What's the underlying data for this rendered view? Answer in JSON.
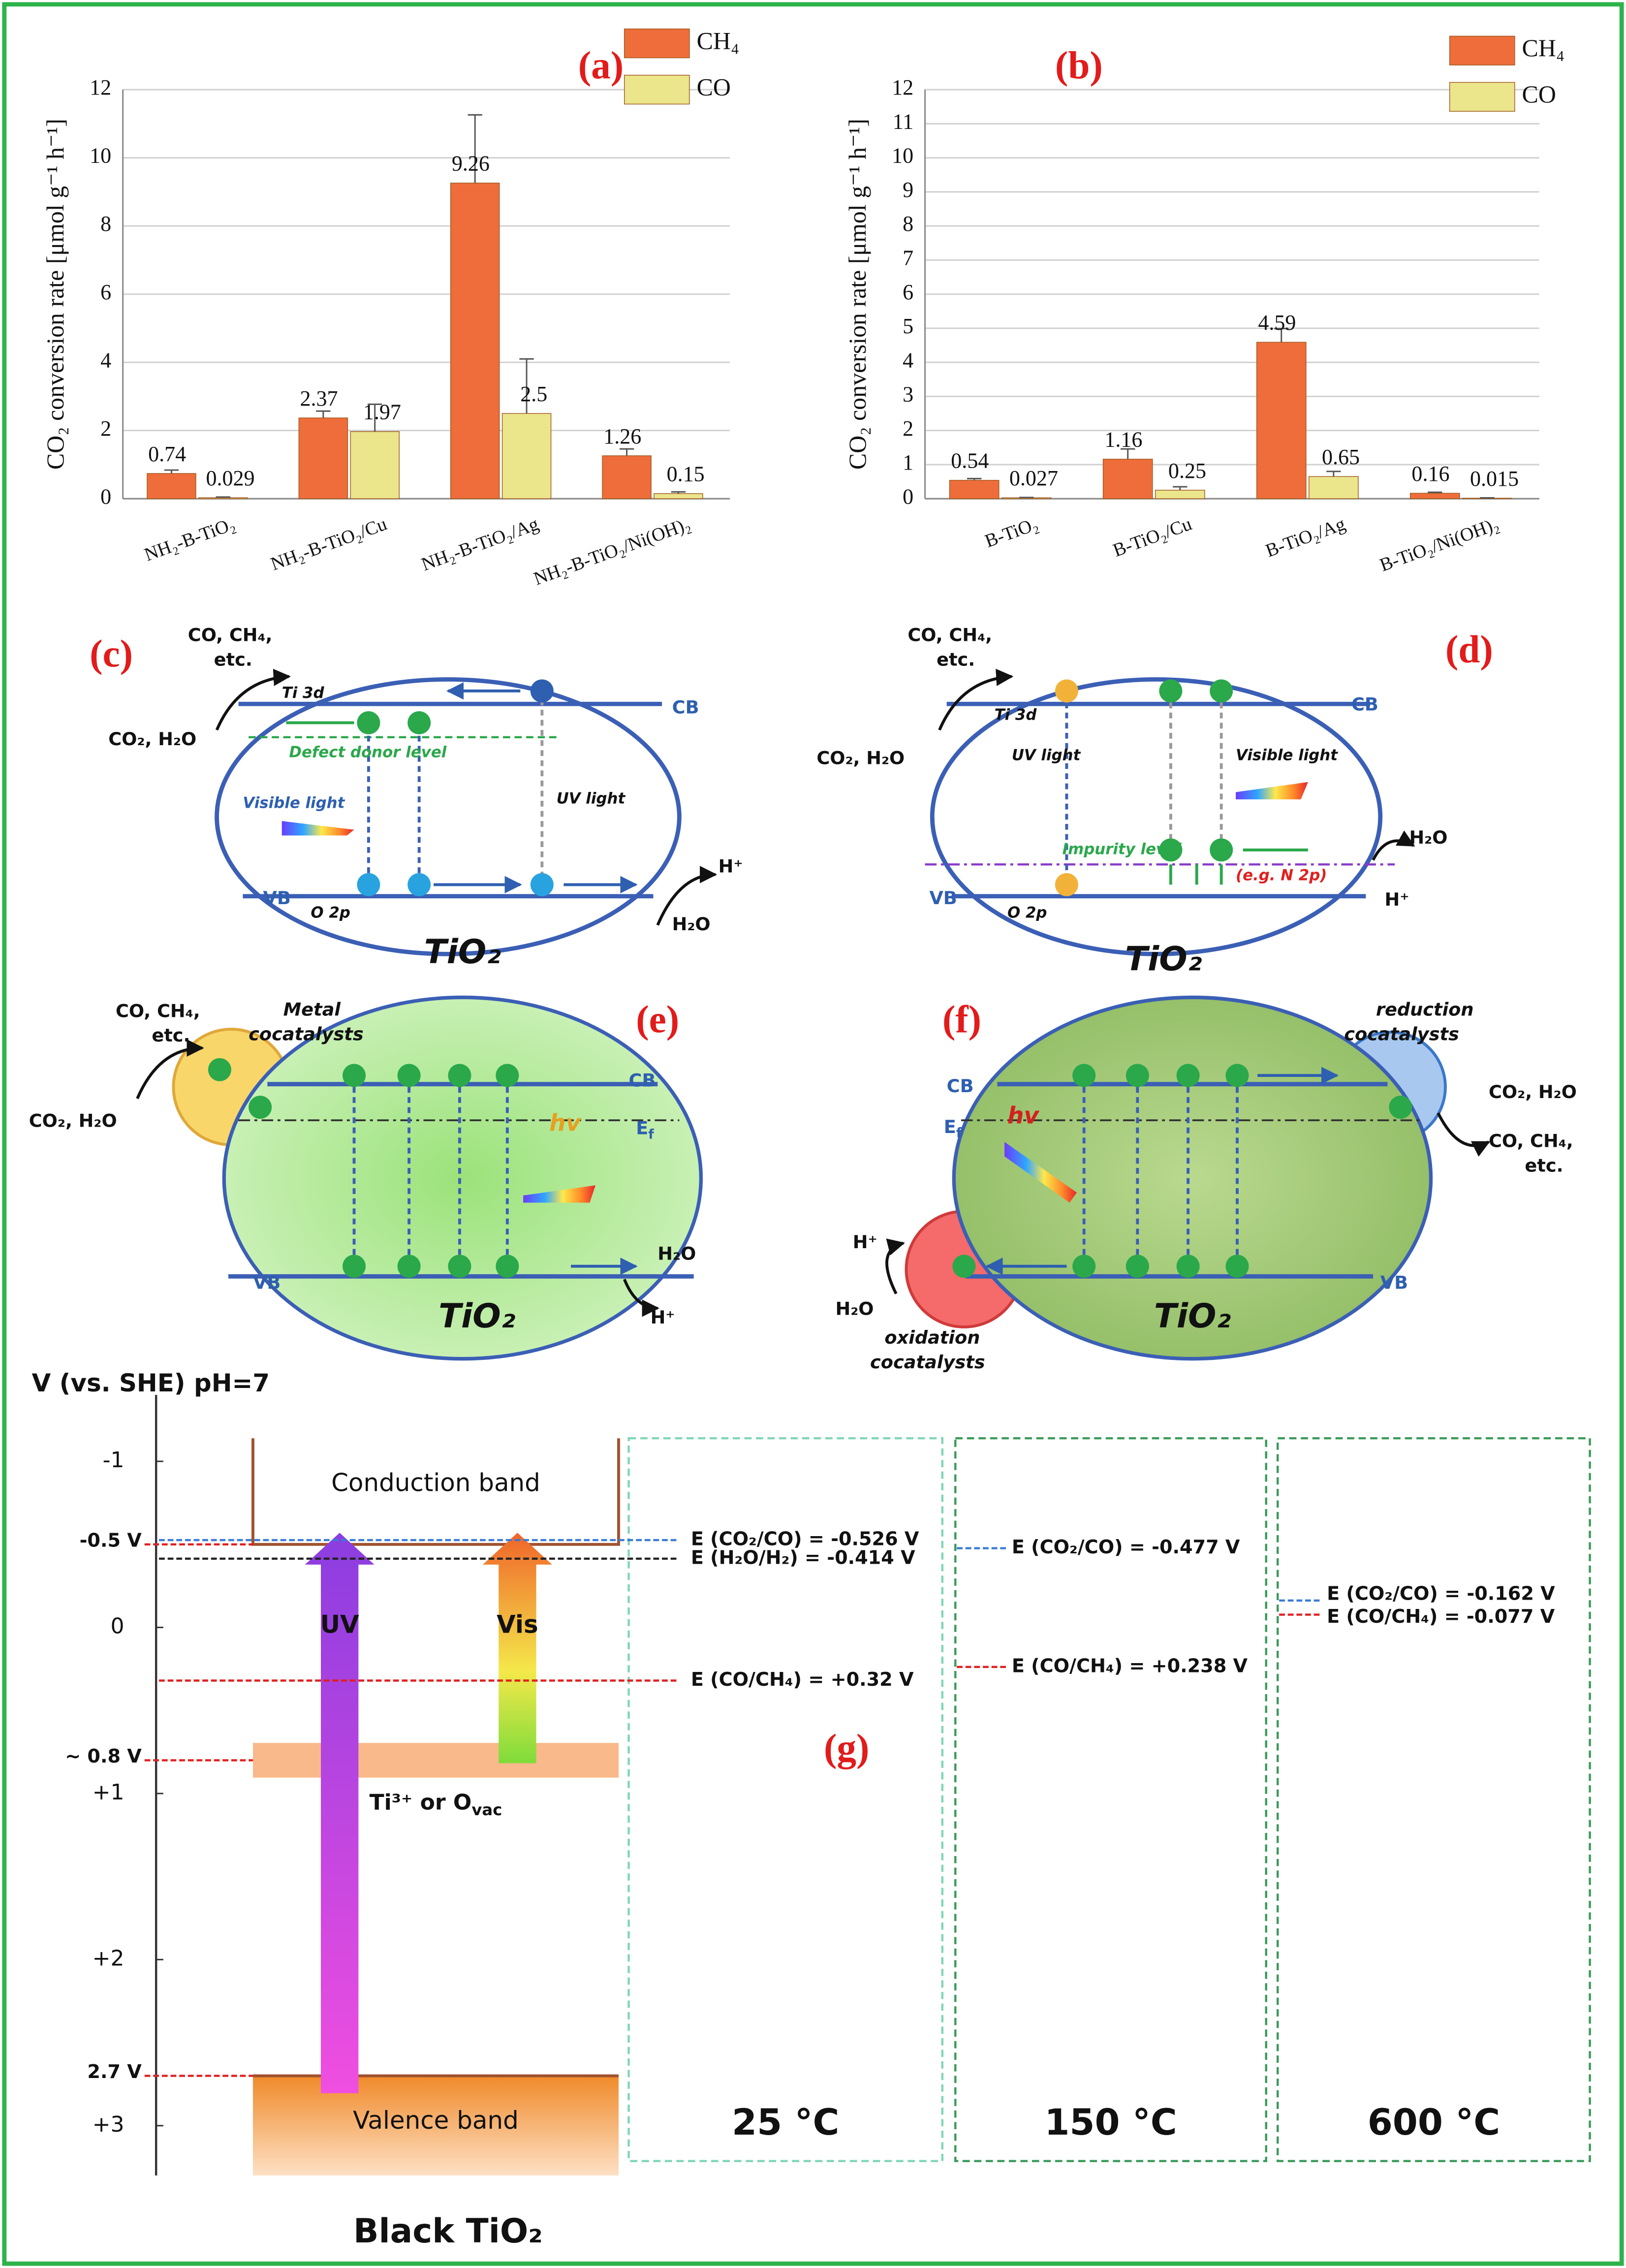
{
  "chart_data": [
    {
      "type": "bar",
      "panel_label": "(a)",
      "y_label": "CO₂ conversion rate [μmol g⁻¹ h⁻¹]",
      "categories": [
        "NH₂-B-TiO₂",
        "NH₂-B-TiO₂/Cu",
        "NH₂-B-TiO₂/Ag",
        "NH₂-B-TiO₂/Ni(OH)₂"
      ],
      "series": [
        {
          "name": "CH₄",
          "color": "#ee6d3a",
          "values": [
            0.74,
            2.37,
            9.26,
            1.26
          ],
          "errors": [
            0.1,
            0.2,
            2.0,
            0.2
          ]
        },
        {
          "name": "CO",
          "color": "#ebe58c",
          "values": [
            0.029,
            1.97,
            2.5,
            0.15
          ],
          "errors": [
            0.02,
            0.8,
            1.6,
            0.05
          ]
        }
      ],
      "ylim": [
        0,
        12
      ],
      "yticks": [
        0,
        2,
        4,
        6,
        8,
        10,
        12
      ],
      "grid": true
    },
    {
      "type": "bar",
      "panel_label": "(b)",
      "y_label": "CO₂ conversion rate [μmol g⁻¹ h⁻¹]",
      "categories": [
        "B-TiO₂",
        "B-TiO₂/Cu",
        "B-TiO₂/Ag",
        "B-TiO₂/Ni(OH)₂"
      ],
      "series": [
        {
          "name": "CH₄",
          "color": "#ee6d3a",
          "values": [
            0.54,
            1.16,
            4.59,
            0.16
          ],
          "errors": [
            0.05,
            0.3,
            0.4,
            0.03
          ]
        },
        {
          "name": "CO",
          "color": "#ebe58c",
          "values": [
            0.027,
            0.25,
            0.65,
            0.015
          ],
          "errors": [
            0.01,
            0.1,
            0.15,
            0.01
          ]
        }
      ],
      "ylim": [
        0,
        12
      ],
      "yticks": [
        0,
        1,
        2,
        3,
        4,
        5,
        6,
        7,
        8,
        9,
        10,
        11,
        12
      ],
      "grid": true
    },
    {
      "type": "band-diagram",
      "panel_label": "(g)",
      "y_label": "V (vs. SHE) pH=7",
      "ylim": [
        -1.4,
        3.3
      ],
      "yticks": [
        -1,
        0,
        {
          "value": 1,
          "label": "+1"
        },
        {
          "value": 2,
          "label": "+2"
        },
        {
          "value": 3,
          "label": "+3"
        }
      ],
      "markers": [
        {
          "value": -0.5,
          "label": "-0.5 V"
        },
        {
          "value": 0.8,
          "label": "~ 0.8 V"
        },
        {
          "value": 2.7,
          "label": "2.7 V"
        }
      ],
      "conduction_band": "Conduction band",
      "valence_band": "Valence band",
      "defect_band": {
        "main": "Ti³⁺ or O",
        "sub": "vac"
      },
      "arrows": [
        "UV",
        "Vis"
      ],
      "material": "Black TiO₂",
      "panels": [
        {
          "temperature": "25 °C",
          "levels": [
            {
              "label": "E (CO₂/CO) = -0.526 V",
              "value": -0.526,
              "color": "#3a7bd5"
            },
            {
              "label": "E (H₂O/H₂) = -0.414 V",
              "value": -0.414,
              "color": "#222222"
            },
            {
              "label": "E (CO/CH₄) = +0.32 V",
              "value": 0.32,
              "color": "#e02020"
            }
          ]
        },
        {
          "temperature": "150 °C",
          "levels": [
            {
              "label": "E (CO₂/CO) = -0.477 V",
              "value": -0.477,
              "color": "#3a7bd5"
            },
            {
              "label": "E (CO/CH₄) = +0.238 V",
              "value": 0.238,
              "color": "#e02020"
            }
          ]
        },
        {
          "temperature": "600 °C",
          "levels": [
            {
              "label": "E (CO₂/CO) = -0.162 V",
              "value": -0.162,
              "color": "#3a7bd5"
            },
            {
              "label": "E (CO/CH₄) = -0.077 V",
              "value": -0.077,
              "color": "#e02020"
            }
          ]
        }
      ]
    }
  ],
  "diagrams": {
    "c": {
      "label": "(c)",
      "products": [
        "CO, CH₄,",
        "etc."
      ],
      "reactants": "CO₂, H₂O",
      "ti3d": "Ti 3d",
      "donor": "Defect donor level",
      "visible": "Visible light",
      "uv": "UV light",
      "cb": "CB",
      "vb": "VB",
      "o2p": "O 2p",
      "material": "TiO₂",
      "h": "H⁺",
      "water": "H₂O"
    },
    "d": {
      "label": "(d)",
      "products": [
        "CO, CH₄,",
        "etc."
      ],
      "reactants": "CO₂, H₂O",
      "ti3d": "Ti 3d",
      "uv": "UV light",
      "visible": "Visible light",
      "impurity": "Impurity level",
      "example": "(e.g. N 2p)",
      "cb": "CB",
      "vb": "VB",
      "o2p": "O 2p",
      "material": "TiO₂",
      "water": "H₂O",
      "h": "H⁺"
    },
    "e": {
      "label": "(e)",
      "products": [
        "CO, CH₄,",
        "etc."
      ],
      "cocatalyst": [
        "Metal",
        "cocatalysts"
      ],
      "reactants": "CO₂, H₂O",
      "cb": "CB",
      "ef": {
        "main": "E",
        "sub": "f"
      },
      "hv": "hv",
      "vb": "VB",
      "material": "TiO₂",
      "water": "H₂O",
      "h": "H⁺"
    },
    "f": {
      "label": "(f)",
      "reduction": [
        "reduction",
        "cocatalysts"
      ],
      "cb": "CB",
      "ef": {
        "main": "E",
        "sub": "f"
      },
      "hv": "hv",
      "reactants": "CO₂, H₂O",
      "products": [
        "CO, CH₄,",
        "etc."
      ],
      "h": "H⁺",
      "water": "H₂O",
      "oxidation": [
        "oxidation",
        "cocatalysts"
      ],
      "vb": "VB",
      "material": "TiO₂"
    }
  }
}
